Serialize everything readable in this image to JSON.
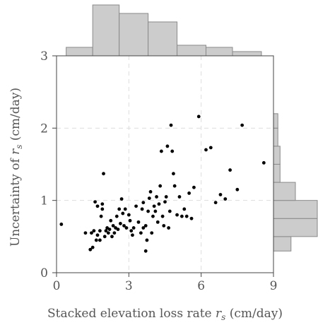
{
  "chart_data": {
    "type": "scatter",
    "xlabel": "Stacked elevation loss rate r_s (cm/day)",
    "ylabel": "Uncertainty of r_s (cm/day)",
    "xlabel_parts": [
      "Stacked elevation loss rate ",
      "r",
      "s",
      " (cm/day)"
    ],
    "ylabel_parts": [
      "Uncertainty of ",
      "r",
      "s",
      " (cm/day)"
    ],
    "xlim": [
      0,
      9
    ],
    "ylim": [
      0,
      3
    ],
    "x_ticks": [
      0,
      3,
      6,
      9
    ],
    "y_ticks": [
      0,
      1,
      2,
      3
    ],
    "x_tick_labels": [
      "0",
      "3",
      "6",
      "9"
    ],
    "y_tick_labels": [
      "0",
      "1",
      "2",
      "3"
    ],
    "grid": true,
    "marginal_x_histogram": {
      "bin_edges": [
        0.4,
        1.5,
        2.6,
        3.8,
        5.0,
        6.2,
        7.3,
        8.5
      ],
      "counts": [
        2,
        12,
        10,
        8,
        2.5,
        2,
        1
      ]
    },
    "marginal_y_histogram": {
      "bin_edges": [
        0.3,
        0.5,
        0.75,
        1.0,
        1.25,
        1.5,
        1.75,
        2.0,
        2.2
      ],
      "counts": [
        4,
        10,
        10,
        5,
        1.5,
        1.5,
        1,
        1
      ]
    },
    "points": [
      [
        0.2,
        0.67
      ],
      [
        1.2,
        0.55
      ],
      [
        1.4,
        0.32
      ],
      [
        1.45,
        0.55
      ],
      [
        1.5,
        0.35
      ],
      [
        1.55,
        0.58
      ],
      [
        1.6,
        0.98
      ],
      [
        1.65,
        0.45
      ],
      [
        1.7,
        0.52
      ],
      [
        1.7,
        0.92
      ],
      [
        1.8,
        0.45
      ],
      [
        1.8,
        0.58
      ],
      [
        1.85,
        0.78
      ],
      [
        1.9,
        0.88
      ],
      [
        1.9,
        0.95
      ],
      [
        1.95,
        1.37
      ],
      [
        2.0,
        0.5
      ],
      [
        2.05,
        0.58
      ],
      [
        2.1,
        0.62
      ],
      [
        2.15,
        0.55
      ],
      [
        2.2,
        0.6
      ],
      [
        2.25,
        0.72
      ],
      [
        2.3,
        0.5
      ],
      [
        2.35,
        0.65
      ],
      [
        2.4,
        0.55
      ],
      [
        2.45,
        0.62
      ],
      [
        2.5,
        0.78
      ],
      [
        2.55,
        0.6
      ],
      [
        2.6,
        0.88
      ],
      [
        2.65,
        0.68
      ],
      [
        2.7,
        1.02
      ],
      [
        2.75,
        0.82
      ],
      [
        2.8,
        0.65
      ],
      [
        2.85,
        0.88
      ],
      [
        2.9,
        0.62
      ],
      [
        3.0,
        0.8
      ],
      [
        3.05,
        0.72
      ],
      [
        3.1,
        0.58
      ],
      [
        3.15,
        0.52
      ],
      [
        3.2,
        0.62
      ],
      [
        3.3,
        0.92
      ],
      [
        3.4,
        0.7
      ],
      [
        3.5,
        0.55
      ],
      [
        3.55,
        0.88
      ],
      [
        3.6,
        0.62
      ],
      [
        3.6,
        0.97
      ],
      [
        3.7,
        0.65
      ],
      [
        3.7,
        0.3
      ],
      [
        3.75,
        0.45
      ],
      [
        3.8,
        0.85
      ],
      [
        3.85,
        1.03
      ],
      [
        3.9,
        1.12
      ],
      [
        3.95,
        0.55
      ],
      [
        4.0,
        0.78
      ],
      [
        4.05,
        0.92
      ],
      [
        4.1,
        0.85
      ],
      [
        4.15,
        1.05
      ],
      [
        4.2,
        0.7
      ],
      [
        4.25,
        0.95
      ],
      [
        4.3,
        1.2
      ],
      [
        4.35,
        1.68
      ],
      [
        4.4,
        0.78
      ],
      [
        4.45,
        0.65
      ],
      [
        4.5,
        0.98
      ],
      [
        4.55,
        1.05
      ],
      [
        4.6,
        1.75
      ],
      [
        4.65,
        0.62
      ],
      [
        4.7,
        0.85
      ],
      [
        4.75,
        2.04
      ],
      [
        4.8,
        1.68
      ],
      [
        4.85,
        1.37
      ],
      [
        4.9,
        1.2
      ],
      [
        5.0,
        0.8
      ],
      [
        5.1,
        1.05
      ],
      [
        5.2,
        0.78
      ],
      [
        5.3,
        0.88
      ],
      [
        5.4,
        0.78
      ],
      [
        5.5,
        1.1
      ],
      [
        5.6,
        0.75
      ],
      [
        5.7,
        1.18
      ],
      [
        5.9,
        2.16
      ],
      [
        6.2,
        1.7
      ],
      [
        6.4,
        1.73
      ],
      [
        6.6,
        0.97
      ],
      [
        6.8,
        1.08
      ],
      [
        7.0,
        1.02
      ],
      [
        7.2,
        1.42
      ],
      [
        7.5,
        1.15
      ],
      [
        7.7,
        2.04
      ],
      [
        8.6,
        1.52
      ]
    ]
  }
}
